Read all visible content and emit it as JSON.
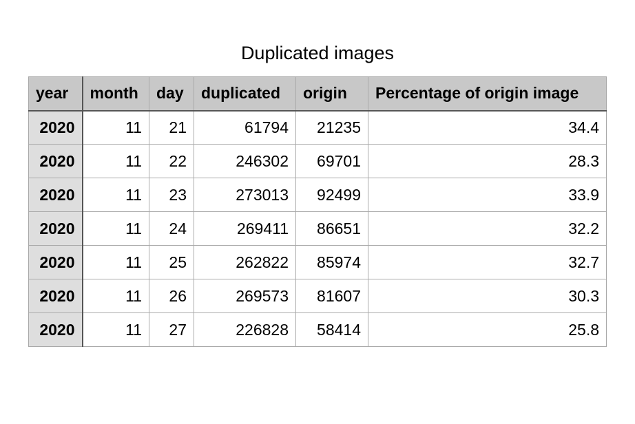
{
  "title": "Duplicated images",
  "table": {
    "headers": [
      "year",
      "month",
      "day",
      "duplicated",
      "origin",
      "Percentage of origin image"
    ],
    "rows": [
      [
        "2020",
        "11",
        "21",
        "61794",
        "21235",
        "34.4"
      ],
      [
        "2020",
        "11",
        "22",
        "246302",
        "69701",
        "28.3"
      ],
      [
        "2020",
        "11",
        "23",
        "273013",
        "92499",
        "33.9"
      ],
      [
        "2020",
        "11",
        "24",
        "269411",
        "86651",
        "32.2"
      ],
      [
        "2020",
        "11",
        "25",
        "262822",
        "85974",
        "32.7"
      ],
      [
        "2020",
        "11",
        "26",
        "269573",
        "81607",
        "30.3"
      ],
      [
        "2020",
        "11",
        "27",
        "226828",
        "58414",
        "25.8"
      ]
    ]
  }
}
